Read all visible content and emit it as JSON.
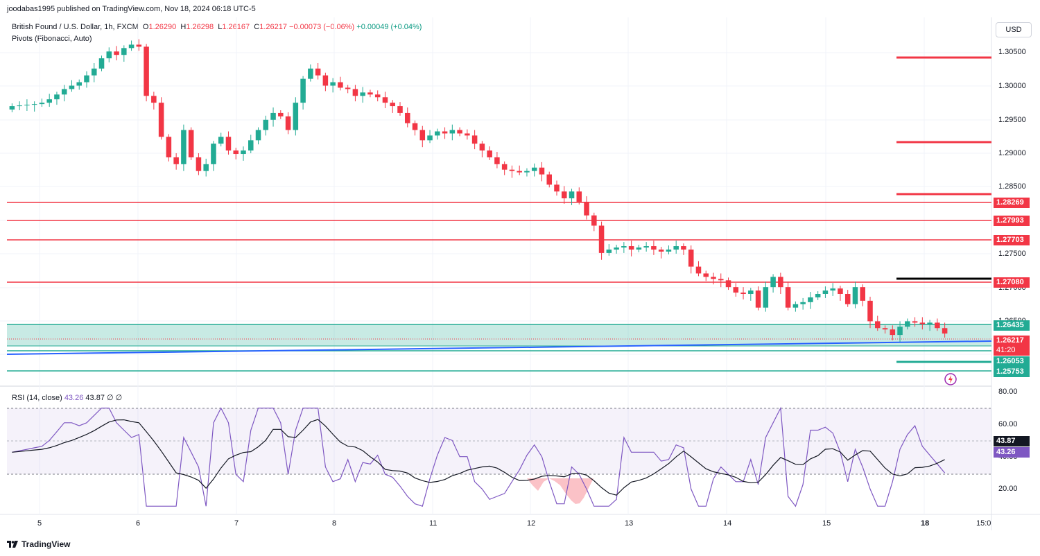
{
  "header": {
    "credit": "joodabas1995 published on TradingView.com, Nov 18, 2024 06:18 UTC-5"
  },
  "legend": {
    "symbol": "British Pound / U.S. Dollar, 1h, FXCM",
    "o_label": "O",
    "o_value": "1.26290",
    "h_label": "H",
    "h_value": "1.26298",
    "l_label": "L",
    "l_value": "1.26167",
    "c_label": "C",
    "c_value": "1.26217",
    "change": "−0.00073 (−0.06%)",
    "change2": "+0.00049 (+0.04%)",
    "indicator": "Pivots (Fibonacci, Auto)"
  },
  "toolbar": {
    "currency_label": "USD"
  },
  "price_axis": {
    "ticks": [
      "1.30500",
      "1.30000",
      "1.29500",
      "1.29000",
      "1.28500",
      "1.27500",
      "1.27000",
      "1.26500"
    ]
  },
  "price_tags": [
    {
      "label": "1.28269",
      "color": "#f23645"
    },
    {
      "label": "1.27993",
      "color": "#f23645"
    },
    {
      "label": "1.27703",
      "color": "#f23645"
    },
    {
      "label": "1.27080",
      "color": "#f23645"
    },
    {
      "label": "1.26435",
      "color": "#22ab94"
    },
    {
      "label": "1.26217",
      "color": "#f23645"
    },
    {
      "label": "41:20",
      "color": "#f23645"
    },
    {
      "label": "1.26053",
      "color": "#22ab94"
    },
    {
      "label": "1.25753",
      "color": "#22ab94"
    }
  ],
  "rsi": {
    "title": "RSI (14, close)",
    "value1": "43.26",
    "value2": "43.87",
    "extra": "∅ ∅",
    "ticks": [
      "80.00",
      "60.00",
      "40.00",
      "20.00"
    ],
    "tag_ma": "43.87",
    "tag_rsi": "43.26"
  },
  "time_axis": {
    "labels": [
      "5",
      "6",
      "7",
      "8",
      "11",
      "12",
      "13",
      "14",
      "15",
      "18",
      "15:0"
    ]
  },
  "footer": {
    "brand": "TradingView"
  },
  "colors": {
    "up": "#22ab94",
    "down": "#f23645",
    "rsi_line": "#7e57c2",
    "trendline": "#2962ff"
  },
  "chart_data": {
    "type": "candlestick",
    "symbol": "GBPUSD",
    "timeframe": "1h",
    "price_range": [
      1.2545,
      1.3085
    ],
    "pivot_levels": {
      "R3": 1.3044,
      "R2": 1.2917,
      "R1": 1.2838,
      "PP": 1.271,
      "S1": 1.2583,
      "S2": 1.2555
    },
    "horizontal_lines": [
      1.28269,
      1.27993,
      1.27703,
      1.2708,
      1.26435,
      1.26053,
      1.25753
    ],
    "closes": [
      1.2955,
      1.2956,
      1.2957,
      1.2958,
      1.296,
      1.2965,
      1.2972,
      1.298,
      1.2985,
      1.299,
      1.3,
      1.301,
      1.3025,
      1.3035,
      1.303,
      1.304,
      1.3045,
      1.3042,
      1.297,
      1.296,
      1.291,
      1.288,
      1.287,
      1.292,
      1.288,
      1.286,
      1.287,
      1.29,
      1.291,
      1.289,
      1.2885,
      1.289,
      1.2905,
      1.292,
      1.2935,
      1.2945,
      1.294,
      1.292,
      1.296,
      1.2995,
      1.301,
      1.3,
      1.2985,
      1.299,
      1.2982,
      1.298,
      1.297,
      1.2975,
      1.2972,
      1.2968,
      1.296,
      1.2955,
      1.2945,
      1.293,
      1.292,
      1.2905,
      1.2912,
      1.2918,
      1.2915,
      1.292,
      1.2915,
      1.2912,
      1.29,
      1.289,
      1.288,
      1.287,
      1.2862,
      1.286,
      1.2858,
      1.286,
      1.2865,
      1.2855,
      1.284,
      1.283,
      1.282,
      1.283,
      1.2815,
      1.2795,
      1.278,
      1.274,
      1.2745,
      1.2748,
      1.275,
      1.2745,
      1.2748,
      1.275,
      1.2745,
      1.2742,
      1.2745,
      1.275,
      1.2745,
      1.272,
      1.271,
      1.2705,
      1.2702,
      1.27,
      1.269,
      1.2682,
      1.268,
      1.2685,
      1.266,
      1.269,
      1.2705,
      1.269,
      1.266,
      1.2665,
      1.2668,
      1.2675,
      1.268,
      1.2685,
      1.2688,
      1.268,
      1.2665,
      1.269,
      1.267,
      1.264,
      1.263,
      1.2628,
      1.262,
      1.2632,
      1.264,
      1.2638,
      1.2636,
      1.2638,
      1.263,
      1.2622
    ]
  }
}
